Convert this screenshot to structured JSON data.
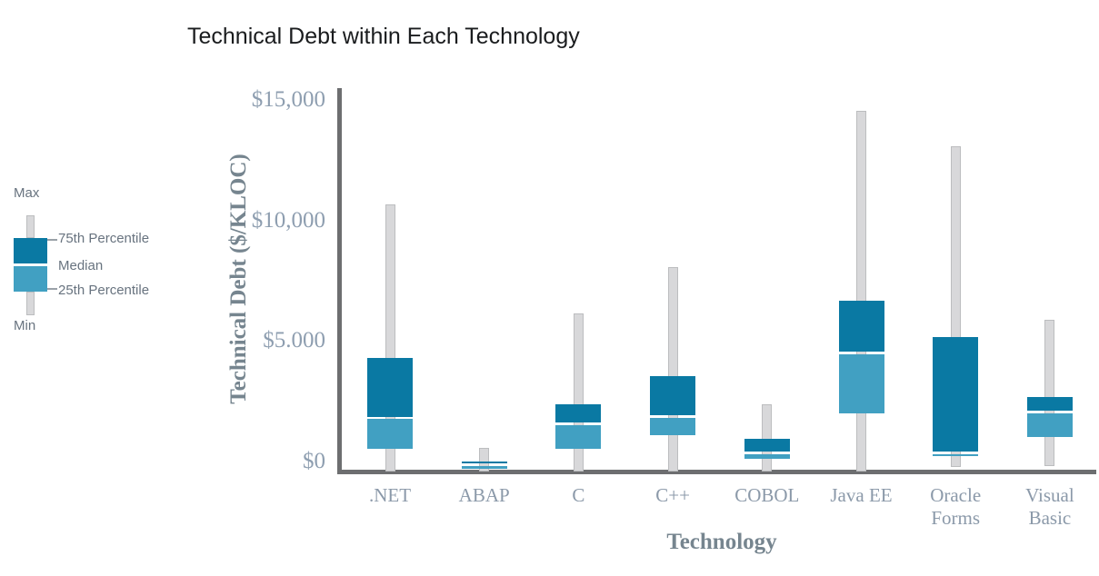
{
  "title": {
    "text": "Technical Debt within Each Technology"
  },
  "legend": {
    "max_label": "Max",
    "q3_label": "75th Percentile",
    "median_label": "Median",
    "q1_label": "25th Percentile",
    "min_label": "Min"
  },
  "colors": {
    "box_upper_75th_to_median": "#0a79a3",
    "box_lower_median_to_25th": "#41a0c2",
    "whisker_fill": "#d8d8da",
    "whisker_border": "#bcbdbf",
    "axis_line": "#6d6e70",
    "y_tick_text": "#8e9eb0",
    "x_tick_text": "#8b99a9",
    "axis_title_text": "#76858f",
    "legend_text": "#68737f",
    "title_text": "#1a1c1e",
    "median_gap": "#ffffff"
  },
  "chart_data": {
    "type": "boxplot",
    "title": "Technical Debt within Each Technology",
    "xlabel": "Technology",
    "ylabel": "Technical Debt ($/KLOC)",
    "unit": "$ per KLOC",
    "ylim": [
      0,
      15000
    ],
    "ytick_values": [
      0,
      5000,
      10000,
      15000
    ],
    "ytick_labels": [
      "$0",
      "$5.000",
      "$10,000",
      "$15,000"
    ],
    "grid": false,
    "legend_position": "left of plot",
    "legend_items": [
      "Max",
      "75th Percentile",
      "Median",
      "25th Percentile",
      "Min"
    ],
    "categories": [
      ".NET",
      "ABAP",
      "C",
      "C++",
      "COBOL",
      "Java EE",
      "Oracle Forms",
      "Visual Basic"
    ],
    "category_label_lines": [
      [
        ".NET"
      ],
      [
        "ABAP"
      ],
      [
        "C"
      ],
      [
        "C++"
      ],
      [
        "COBOL"
      ],
      [
        "Java EE"
      ],
      [
        "Oracle",
        "Forms"
      ],
      [
        "Visual",
        "Basic"
      ]
    ],
    "series": [
      {
        "category": ".NET",
        "min": 0,
        "q1": 850,
        "median": 2150,
        "q3": 4650,
        "max": 11000
      },
      {
        "category": "ABAP",
        "min": 0,
        "q1": 50,
        "median": 200,
        "q3": 350,
        "max": 900
      },
      {
        "category": "C",
        "min": 0,
        "q1": 850,
        "median": 1900,
        "q3": 2700,
        "max": 6500
      },
      {
        "category": "C++",
        "min": 0,
        "q1": 1450,
        "median": 2200,
        "q3": 3900,
        "max": 8400
      },
      {
        "category": "COBOL",
        "min": 0,
        "q1": 450,
        "median": 700,
        "q3": 1300,
        "max": 2700
      },
      {
        "category": "Java EE",
        "min": 0,
        "q1": 2350,
        "median": 4850,
        "q3": 7000,
        "max": 14900
      },
      {
        "category": "Oracle Forms",
        "min": 100,
        "q1": 580,
        "median": 700,
        "q3": 5500,
        "max": 13400
      },
      {
        "category": "Visual Basic",
        "min": 150,
        "q1": 1350,
        "median": 2400,
        "q3": 3000,
        "max": 6200
      }
    ]
  }
}
